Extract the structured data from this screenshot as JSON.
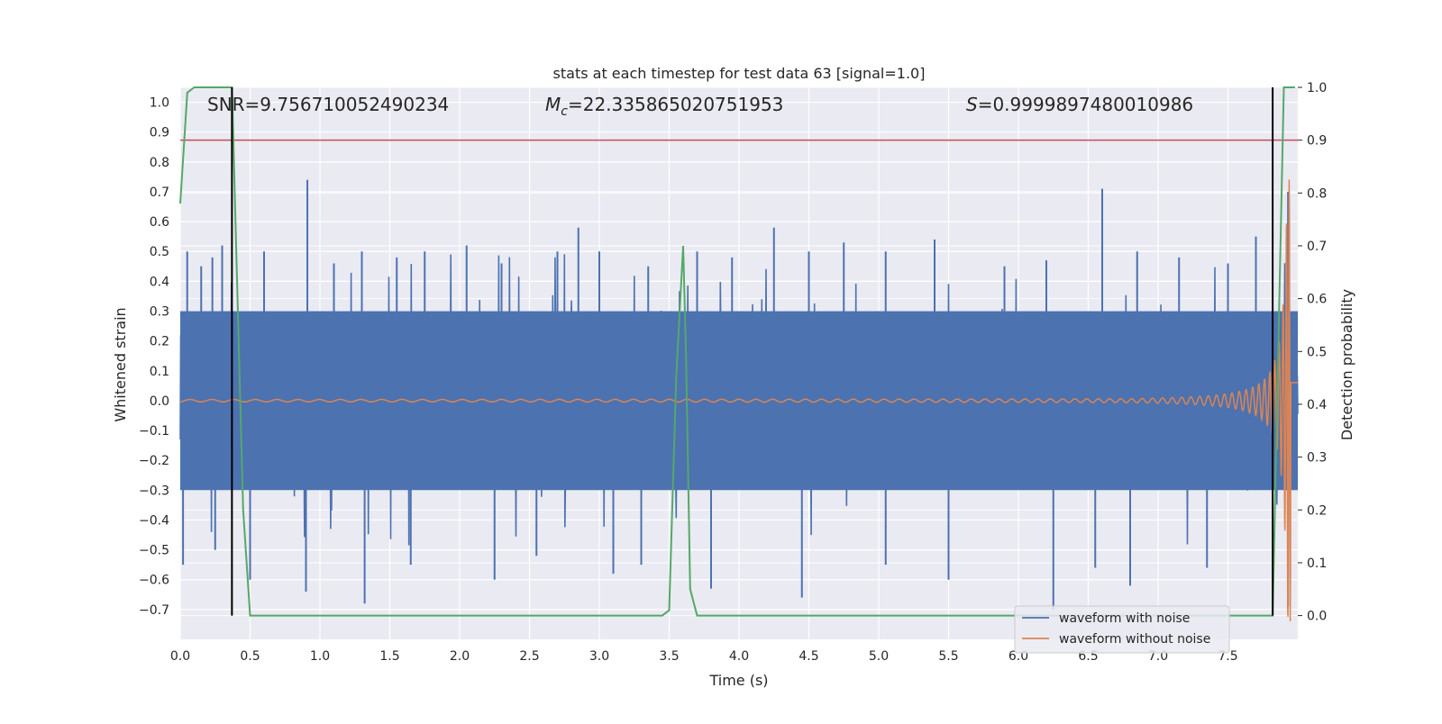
{
  "chart_data": {
    "type": "line",
    "title": "stats at each timestep for test data 63 [signal=1.0]",
    "xlabel": "Time (s)",
    "ylabel": "Whitened strain",
    "y2label": "Detection probability",
    "xlim": [
      0.0,
      8.0
    ],
    "ylim": [
      -0.8,
      1.05
    ],
    "y2lim": [
      -0.045,
      1.0
    ],
    "x_ticks": [
      "0.0",
      "0.5",
      "1.0",
      "1.5",
      "2.0",
      "2.5",
      "3.0",
      "3.5",
      "4.0",
      "4.5",
      "5.0",
      "5.5",
      "6.0",
      "6.5",
      "7.0",
      "7.5"
    ],
    "y_ticks": [
      "−0.7",
      "−0.6",
      "−0.5",
      "−0.4",
      "−0.3",
      "−0.2",
      "−0.1",
      "0.0",
      "0.1",
      "0.2",
      "0.3",
      "0.4",
      "0.5",
      "0.6",
      "0.7",
      "0.8",
      "0.9",
      "1.0"
    ],
    "y2_ticks": [
      "0.0",
      "0.1",
      "0.2",
      "0.3",
      "0.4",
      "0.5",
      "0.6",
      "0.7",
      "0.8",
      "0.9",
      "1.0"
    ],
    "annotations": {
      "snr": "SNR=9.756710052490234",
      "mc_symbol": "M",
      "mc_sub": "c",
      "mc_value": "=22.335865020751953",
      "s_symbol": "S",
      "s_value": "=0.9999897480010986"
    },
    "threshold": {
      "y2": 0.9,
      "color": "#c44e52"
    },
    "vlines": [
      0.37,
      7.82
    ],
    "series": [
      {
        "name": "waveform with noise",
        "color": "#4c72b0",
        "kind": "noise",
        "band_min": -0.3,
        "band_max": 0.3,
        "spikes_up": [
          [
            0.05,
            0.5
          ],
          [
            0.15,
            0.45
          ],
          [
            0.23,
            0.48
          ],
          [
            0.3,
            0.52
          ],
          [
            0.6,
            0.5
          ],
          [
            0.91,
            0.74
          ],
          [
            1.1,
            0.46
          ],
          [
            1.3,
            0.5
          ],
          [
            1.55,
            0.48
          ],
          [
            1.75,
            0.5
          ],
          [
            2.05,
            0.52
          ],
          [
            2.3,
            0.46
          ],
          [
            2.7,
            0.5
          ],
          [
            2.85,
            0.58
          ],
          [
            3.0,
            0.5
          ],
          [
            3.35,
            0.45
          ],
          [
            3.7,
            0.5
          ],
          [
            3.95,
            0.48
          ],
          [
            4.25,
            0.58
          ],
          [
            4.5,
            0.5
          ],
          [
            4.75,
            0.53
          ],
          [
            5.05,
            0.5
          ],
          [
            5.4,
            0.54
          ],
          [
            5.9,
            0.45
          ],
          [
            6.2,
            0.47
          ],
          [
            6.6,
            0.71
          ],
          [
            6.85,
            0.5
          ],
          [
            7.15,
            0.48
          ],
          [
            7.5,
            0.46
          ],
          [
            7.7,
            0.55
          ],
          [
            7.93,
            0.7
          ]
        ],
        "spikes_down": [
          [
            0.02,
            -0.55
          ],
          [
            0.25,
            -0.5
          ],
          [
            0.5,
            -0.6
          ],
          [
            0.9,
            -0.64
          ],
          [
            1.32,
            -0.68
          ],
          [
            1.65,
            -0.55
          ],
          [
            2.25,
            -0.6
          ],
          [
            2.55,
            -0.52
          ],
          [
            3.1,
            -0.58
          ],
          [
            3.3,
            -0.55
          ],
          [
            3.8,
            -0.63
          ],
          [
            4.45,
            -0.66
          ],
          [
            5.05,
            -0.55
          ],
          [
            5.5,
            -0.6
          ],
          [
            6.25,
            -0.7
          ],
          [
            6.55,
            -0.56
          ],
          [
            6.8,
            -0.62
          ],
          [
            7.35,
            -0.56
          ],
          [
            7.93,
            -0.69
          ]
        ]
      },
      {
        "name": "waveform without noise",
        "color": "#dd8452",
        "kind": "chirp",
        "t_merge": 7.96,
        "amp_early": 0.004,
        "amp_late": 0.3
      },
      {
        "name": "detection probability",
        "color": "#55a868",
        "axis": "y2",
        "x": [
          0.0,
          0.05,
          0.1,
          0.2,
          0.37,
          0.4,
          0.45,
          0.5,
          3.0,
          3.45,
          3.5,
          3.55,
          3.6,
          3.62,
          3.65,
          3.7,
          3.75,
          4.0,
          7.8,
          7.82,
          7.9,
          7.95,
          7.98
        ],
        "y": [
          0.78,
          0.99,
          1.0,
          1.0,
          1.0,
          0.7,
          0.2,
          0.0,
          0.0,
          0.0,
          0.01,
          0.45,
          0.7,
          0.5,
          0.05,
          0.0,
          0.0,
          0.0,
          0.0,
          0.0,
          1.0,
          1.0,
          1.0
        ]
      }
    ],
    "legend": {
      "position": "lower-right",
      "entries": [
        "waveform with noise",
        "waveform without noise"
      ]
    },
    "grid": true
  }
}
